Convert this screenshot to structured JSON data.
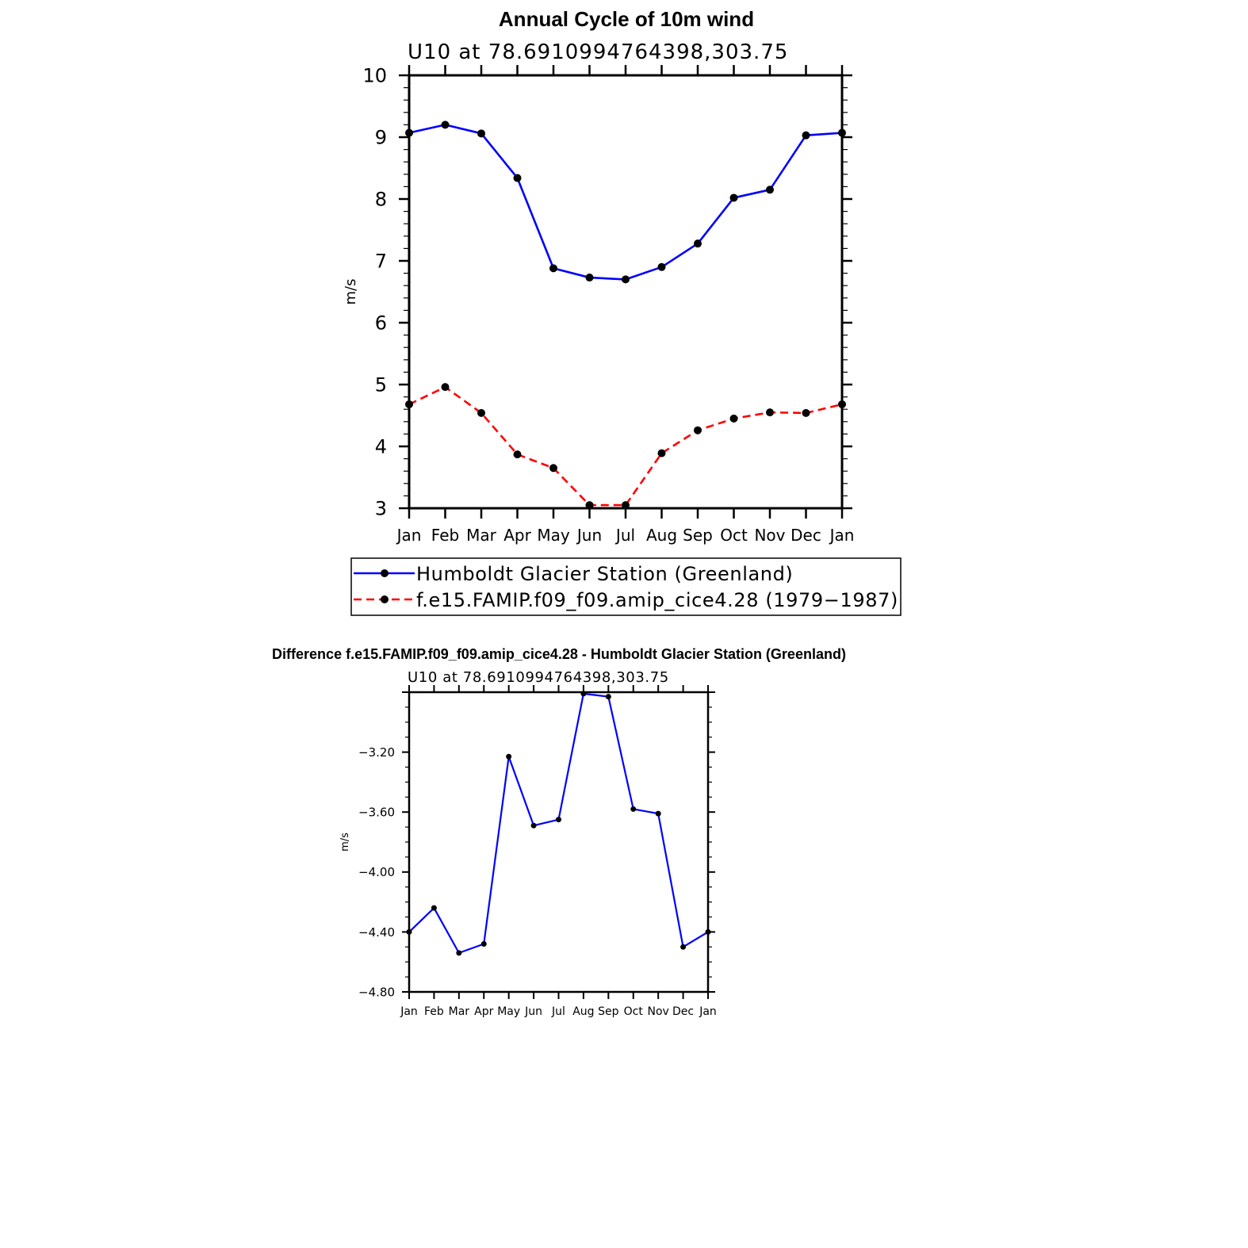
{
  "chart_data": [
    {
      "type": "line",
      "title": "Annual Cycle of 10m wind",
      "subtitle": "U10 at 78.6910994764398,303.75",
      "xlabel": "",
      "ylabel": "m/s",
      "categories": [
        "Jan",
        "Feb",
        "Mar",
        "Apr",
        "May",
        "Jun",
        "Jul",
        "Aug",
        "Sep",
        "Oct",
        "Nov",
        "Dec",
        "Jan"
      ],
      "ylim": [
        3,
        10
      ],
      "yticks": [
        "3",
        "4",
        "5",
        "6",
        "7",
        "8",
        "9",
        "10"
      ],
      "legend_position": "bottom",
      "series": [
        {
          "name": "Humboldt Glacier Station (Greenland)",
          "color": "#0000ff",
          "style": "solid",
          "marker": "dot",
          "values": [
            9.07,
            9.2,
            9.06,
            8.34,
            6.88,
            6.73,
            6.7,
            6.9,
            7.28,
            8.02,
            8.15,
            9.03,
            9.07
          ]
        },
        {
          "name": "f.e15.FAMIP.f09_f09.amip_cice4.28 (1979−1987)",
          "color": "#ff0000",
          "style": "dashed",
          "marker": "dot",
          "values": [
            4.68,
            4.96,
            4.54,
            3.87,
            3.65,
            3.05,
            3.05,
            3.89,
            4.26,
            4.45,
            4.55,
            4.54,
            4.68
          ]
        }
      ]
    },
    {
      "type": "line",
      "title": "Difference f.e15.FAMIP.f09_f09.amip_cice4.28 - Humboldt Glacier Station (Greenland)",
      "subtitle": "U10 at 78.6910994764398,303.75",
      "xlabel": "",
      "ylabel": "m/s",
      "categories": [
        "Jan",
        "Feb",
        "Mar",
        "Apr",
        "May",
        "Jun",
        "Jul",
        "Aug",
        "Sep",
        "Oct",
        "Nov",
        "Dec",
        "Jan"
      ],
      "ylim": [
        -4.8,
        -2.8
      ],
      "yticks": [
        "−3.20",
        "−3.60",
        "−4.00",
        "−4.40",
        "−4.80"
      ],
      "series": [
        {
          "color": "#0000ff",
          "style": "solid",
          "marker": "dot",
          "values": [
            -4.4,
            -4.24,
            -4.54,
            -4.48,
            -3.23,
            -3.69,
            -3.65,
            -2.81,
            -2.83,
            -3.58,
            -3.61,
            -4.5,
            -4.4
          ]
        }
      ]
    }
  ]
}
